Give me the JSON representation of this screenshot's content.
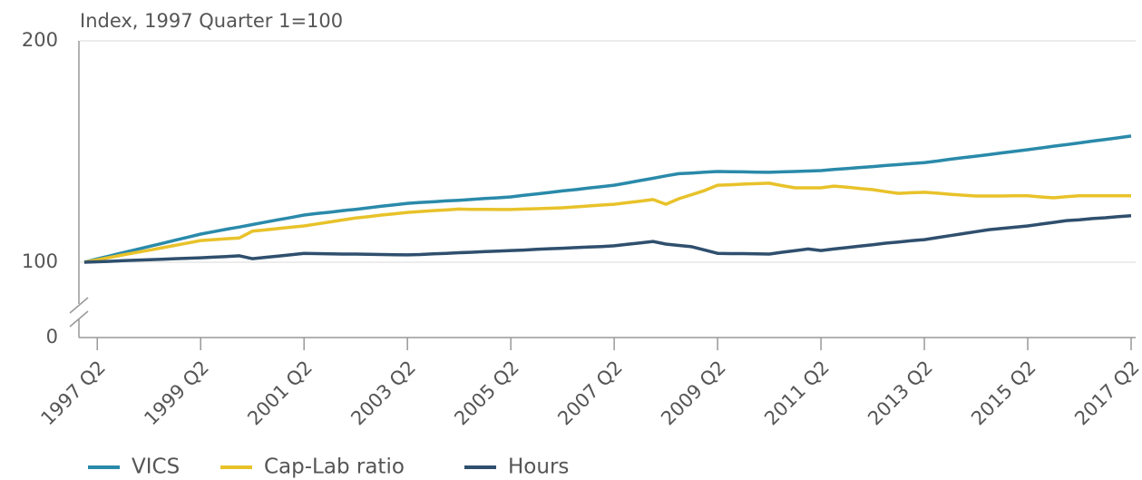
{
  "chart_data": {
    "type": "line",
    "y_label": "Index, 1997 Quarter 1=100",
    "categories": [
      null,
      "1997 Q2",
      null,
      null,
      null,
      null,
      null,
      null,
      null,
      "1999 Q2",
      null,
      null,
      null,
      null,
      null,
      null,
      null,
      "2001 Q2",
      null,
      null,
      null,
      null,
      null,
      null,
      null,
      "2003 Q2",
      null,
      null,
      null,
      null,
      null,
      null,
      null,
      "2005 Q2",
      null,
      null,
      null,
      null,
      null,
      null,
      null,
      "2007 Q2",
      null,
      null,
      null,
      null,
      null,
      null,
      null,
      "2009 Q2",
      null,
      null,
      null,
      null,
      null,
      null,
      null,
      "2011 Q2",
      null,
      null,
      null,
      null,
      null,
      null,
      null,
      "2013 Q2",
      null,
      null,
      null,
      null,
      null,
      null,
      null,
      "2015 Q2",
      null,
      null,
      null,
      null,
      null,
      null,
      null,
      "2017 Q2"
    ],
    "series": [
      {
        "name": "VICS",
        "color": "#2a8aaa",
        "values": [
          100,
          101.5,
          102.9,
          104.3,
          105.7,
          107.1,
          108.5,
          109.9,
          111.3,
          112.7,
          113.8,
          114.9,
          115.9,
          117.0,
          118.1,
          119.2,
          120.2,
          121.3,
          122.0,
          122.6,
          123.3,
          123.9,
          124.6,
          125.3,
          125.9,
          126.6,
          127.0,
          127.3,
          127.7,
          128.0,
          128.4,
          128.8,
          129.1,
          129.5,
          130.2,
          130.8,
          131.5,
          132.2,
          132.8,
          133.5,
          134.1,
          134.8,
          135.8,
          136.9,
          137.9,
          139.0,
          140.0,
          140.3,
          140.7,
          141.0,
          140.9,
          140.8,
          140.7,
          140.6,
          140.8,
          141.0,
          141.2,
          141.4,
          141.9,
          142.3,
          142.8,
          143.2,
          143.7,
          144.1,
          144.6,
          145.0,
          145.7,
          146.5,
          147.2,
          147.9,
          148.6,
          149.4,
          150.1,
          150.8,
          151.6,
          152.4,
          153.1,
          153.9,
          154.7,
          155.4,
          156.2,
          157.0
        ]
      },
      {
        "name": "Cap-Lab ratio",
        "color": "#e8c22a",
        "values": [
          100,
          101.1,
          102.2,
          103.3,
          104.4,
          105.4,
          106.5,
          107.6,
          108.7,
          109.8,
          110.2,
          110.6,
          111.0,
          114.0,
          114.6,
          115.2,
          115.8,
          116.4,
          117.3,
          118.2,
          119.1,
          120.0,
          120.6,
          121.3,
          121.9,
          122.5,
          122.9,
          123.3,
          123.6,
          124.0,
          123.9,
          123.9,
          123.8,
          123.8,
          124.0,
          124.2,
          124.4,
          124.6,
          125.0,
          125.4,
          125.8,
          126.2,
          126.9,
          127.6,
          128.3,
          126.2,
          128.7,
          130.5,
          132.4,
          134.8,
          135.0,
          135.3,
          135.5,
          135.7,
          134.6,
          133.6,
          133.6,
          133.6,
          134.4,
          133.9,
          133.3,
          132.8,
          131.9,
          131.1,
          131.4,
          131.6,
          131.2,
          130.7,
          130.3,
          129.9,
          129.9,
          129.9,
          130.0,
          130.0,
          129.5,
          129.1,
          129.6,
          130.0,
          130.0,
          130.0,
          130.0,
          130.0
        ]
      },
      {
        "name": "Hours",
        "color": "#2f4f6e",
        "values": [
          100,
          100.2,
          100.4,
          100.7,
          100.9,
          101.1,
          101.3,
          101.6,
          101.8,
          102.0,
          102.3,
          102.6,
          102.9,
          101.6,
          102.2,
          102.8,
          103.4,
          104.0,
          103.9,
          103.8,
          103.7,
          103.7,
          103.6,
          103.5,
          103.4,
          103.3,
          103.5,
          103.8,
          104.0,
          104.3,
          104.5,
          104.8,
          105.0,
          105.3,
          105.5,
          105.8,
          106.1,
          106.3,
          106.6,
          106.9,
          107.1,
          107.4,
          108.1,
          108.7,
          109.4,
          108.2,
          107.6,
          107.0,
          105.5,
          104.0,
          103.9,
          103.9,
          103.8,
          103.7,
          104.5,
          105.2,
          106.0,
          105.3,
          106.0,
          106.6,
          107.3,
          107.9,
          108.6,
          109.1,
          109.7,
          110.2,
          111.1,
          112.0,
          112.9,
          113.8,
          114.7,
          115.3,
          115.8,
          116.4,
          117.2,
          118.0,
          118.8,
          119.2,
          119.7,
          120.1,
          120.6,
          121.0
        ]
      }
    ],
    "ylim": [
      0,
      200
    ],
    "yticks": [
      0,
      100,
      200
    ],
    "axis_break": [
      0,
      100
    ]
  }
}
